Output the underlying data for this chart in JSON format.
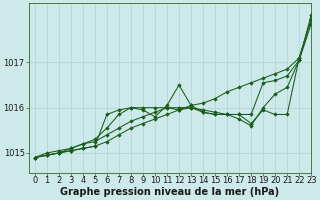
{
  "background_color": "#cde9e9",
  "grid_color": "#b0d8d8",
  "line_color": "#1a5c1a",
  "marker_color": "#1a5c1a",
  "xlabel": "Graphe pression niveau de la mer (hPa)",
  "xlabel_fontsize": 7.0,
  "tick_fontsize": 6.0,
  "xlim": [
    -0.5,
    23
  ],
  "ylim": [
    1014.55,
    1018.3
  ],
  "yticks": [
    1015,
    1016,
    1017
  ],
  "xticks": [
    0,
    1,
    2,
    3,
    4,
    5,
    6,
    7,
    8,
    9,
    10,
    11,
    12,
    13,
    14,
    15,
    16,
    17,
    18,
    19,
    20,
    21,
    22,
    23
  ],
  "series": [
    {
      "x": [
        0,
        1,
        2,
        3,
        4,
        5,
        6,
        7,
        8,
        9,
        10,
        11,
        12,
        13,
        14,
        15,
        16,
        17,
        18,
        19,
        20,
        21,
        22,
        23
      ],
      "y": [
        1014.9,
        1014.95,
        1015.0,
        1015.05,
        1015.1,
        1015.15,
        1015.25,
        1015.4,
        1015.55,
        1015.65,
        1015.75,
        1015.85,
        1015.95,
        1016.05,
        1016.1,
        1016.2,
        1016.35,
        1016.45,
        1016.55,
        1016.65,
        1016.75,
        1016.85,
        1017.1,
        1017.95
      ]
    },
    {
      "x": [
        0,
        1,
        2,
        3,
        4,
        5,
        6,
        7,
        8,
        9,
        10,
        11,
        12,
        13,
        14,
        15,
        16,
        17,
        18,
        19,
        20,
        21,
        22,
        23
      ],
      "y": [
        1014.9,
        1014.95,
        1015.0,
        1015.05,
        1015.1,
        1015.15,
        1015.85,
        1015.95,
        1016.0,
        1016.0,
        1016.0,
        1016.0,
        1015.95,
        1016.0,
        1015.95,
        1015.9,
        1015.85,
        1015.75,
        1015.6,
        1016.0,
        1016.3,
        1016.45,
        1017.05,
        1017.85
      ]
    },
    {
      "x": [
        0,
        1,
        2,
        3,
        4,
        5,
        6,
        7,
        8,
        9,
        10,
        11,
        12,
        13,
        14,
        15,
        16,
        17,
        18,
        19,
        20,
        21,
        22,
        23
      ],
      "y": [
        1014.9,
        1014.95,
        1015.0,
        1015.1,
        1015.2,
        1015.3,
        1015.55,
        1015.85,
        1016.0,
        1015.95,
        1015.8,
        1016.05,
        1016.5,
        1016.05,
        1015.9,
        1015.85,
        1015.85,
        1015.85,
        1015.65,
        1015.95,
        1015.85,
        1015.85,
        1017.1,
        1017.95
      ]
    },
    {
      "x": [
        0,
        1,
        2,
        3,
        4,
        5,
        6,
        7,
        8,
        9,
        10,
        11,
        12,
        13,
        14,
        15,
        16,
        17,
        18,
        19,
        20,
        21,
        22,
        23
      ],
      "y": [
        1014.9,
        1015.0,
        1015.05,
        1015.1,
        1015.2,
        1015.25,
        1015.4,
        1015.55,
        1015.7,
        1015.8,
        1015.9,
        1016.0,
        1016.0,
        1016.0,
        1015.9,
        1015.85,
        1015.85,
        1015.85,
        1015.85,
        1016.55,
        1016.6,
        1016.7,
        1017.05,
        1018.05
      ]
    }
  ]
}
